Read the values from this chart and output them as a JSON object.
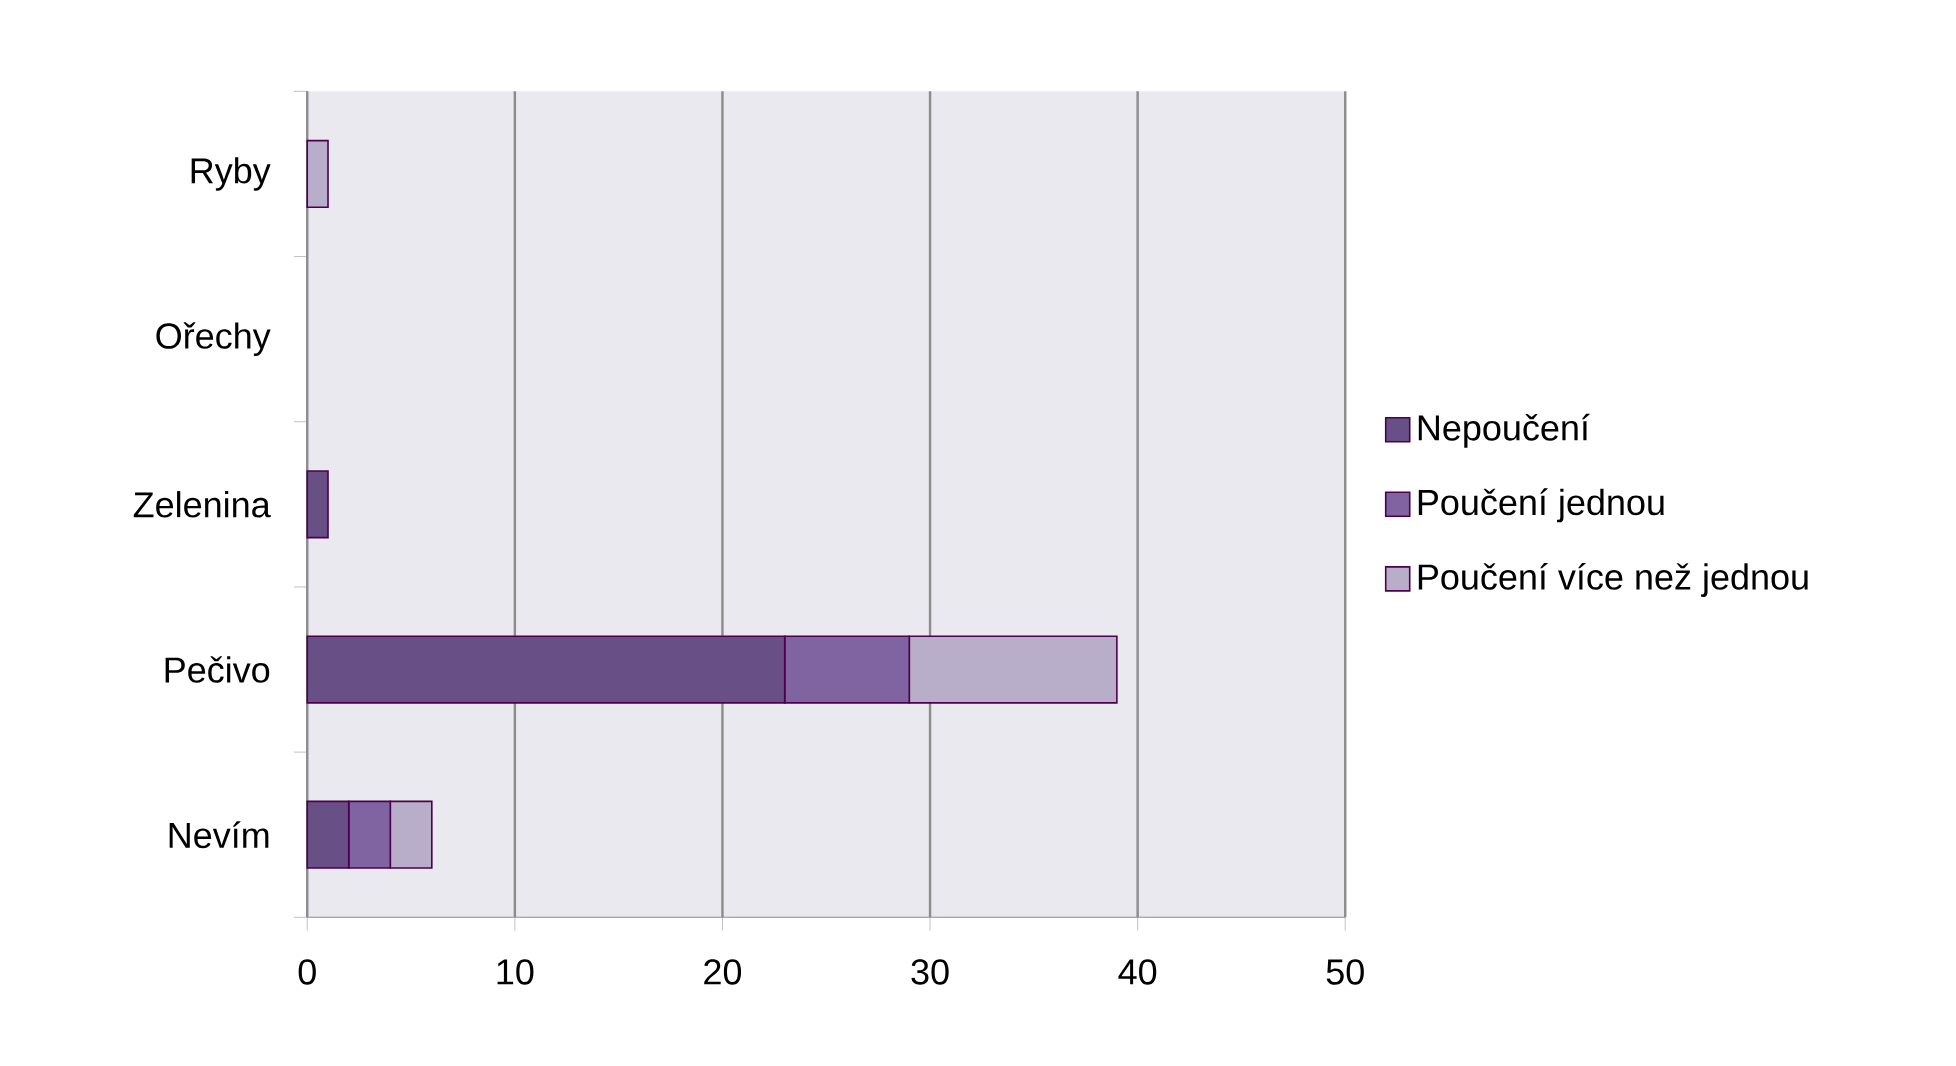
{
  "chart_data": {
    "type": "bar",
    "orientation": "horizontal",
    "stacked": true,
    "categories": [
      "Ryby",
      "Ořechy",
      "Zelenina",
      "Pečivo",
      "Nevím"
    ],
    "series": [
      {
        "name": "Nepoučení",
        "color": "#684f86",
        "values": [
          0,
          0,
          1,
          23,
          2
        ]
      },
      {
        "name": "Poučení jednou",
        "color": "#8064a2",
        "values": [
          0,
          0,
          0,
          6,
          2
        ]
      },
      {
        "name": "Poučení více než jednou",
        "color": "#b9aeca",
        "values": [
          1,
          0,
          0,
          10,
          2
        ]
      }
    ],
    "xlim": [
      0,
      50
    ],
    "xticks": [
      0,
      10,
      20,
      30,
      40,
      50
    ],
    "grid": "x",
    "legend": "right"
  }
}
